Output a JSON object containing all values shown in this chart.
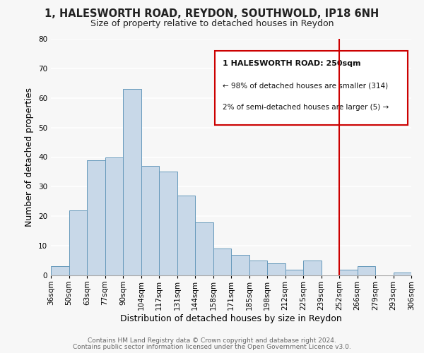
{
  "title": "1, HALESWORTH ROAD, REYDON, SOUTHWOLD, IP18 6NH",
  "subtitle": "Size of property relative to detached houses in Reydon",
  "xlabel": "Distribution of detached houses by size in Reydon",
  "ylabel": "Number of detached properties",
  "bar_color": "#c8d8e8",
  "bar_edge_color": "#6699bb",
  "bins": [
    "36sqm",
    "50sqm",
    "63sqm",
    "77sqm",
    "90sqm",
    "104sqm",
    "117sqm",
    "131sqm",
    "144sqm",
    "158sqm",
    "171sqm",
    "185sqm",
    "198sqm",
    "212sqm",
    "225sqm",
    "239sqm",
    "252sqm",
    "266sqm",
    "279sqm",
    "293sqm",
    "306sqm"
  ],
  "values": [
    3,
    22,
    39,
    40,
    63,
    37,
    35,
    27,
    18,
    9,
    7,
    5,
    4,
    2,
    5,
    0,
    2,
    3,
    0,
    1
  ],
  "vline_x_index": 16,
  "vline_color": "#cc0000",
  "ylim": [
    0,
    80
  ],
  "yticks": [
    0,
    10,
    20,
    30,
    40,
    50,
    60,
    70,
    80
  ],
  "annotation_title": "1 HALESWORTH ROAD: 250sqm",
  "annotation_line1": "← 98% of detached houses are smaller (314)",
  "annotation_line2": "2% of semi-detached houses are larger (5) →",
  "footer1": "Contains HM Land Registry data © Crown copyright and database right 2024.",
  "footer2": "Contains public sector information licensed under the Open Government Licence v3.0.",
  "background_color": "#f7f7f7",
  "grid_color": "#ffffff",
  "title_fontsize": 10.5,
  "subtitle_fontsize": 9,
  "axis_fontsize": 9,
  "tick_fontsize": 7.5,
  "footer_fontsize": 6.5
}
